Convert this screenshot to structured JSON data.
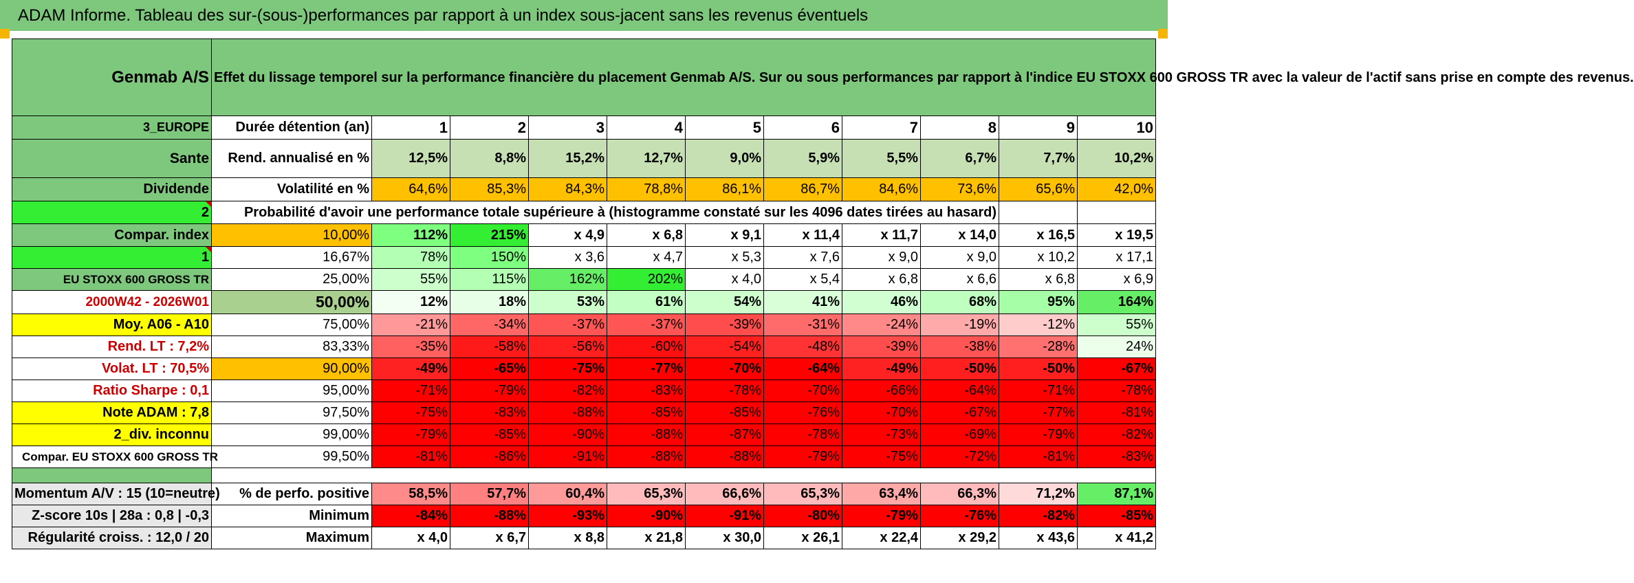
{
  "title": "ADAM Informe. Tableau des sur-(sous-)performances par rapport à un index sous-jacent sans les revenus éventuels",
  "side": {
    "stock": "Genmab A/S",
    "region": "3_EUROPE",
    "sector": "Sante",
    "dividend": "Dividende",
    "selector_a": "2",
    "compar_index": "Compar. index",
    "selector_b": "1",
    "index_name": "EU STOXX 600 GROSS TR",
    "period": "2000W42 - 2026W01",
    "moy": "Moy. A06 - A10",
    "rend_lt": "Rend. LT :    7,2%",
    "volat_lt": "Volat. LT :    70,5%",
    "sharpe": "Ratio Sharpe :     0,1",
    "note": "Note ADAM : 7,8",
    "div": "2_div. inconnu",
    "compar": "Compar. EU STOXX 600 GROSS TR",
    "momentum": "Momentum A/V : 15 (10=neutre)",
    "zscore": "Z-score 10s | 28a : 0,8 | -0,3",
    "regularite": "Régularité croiss. : 12,0 / 20"
  },
  "description": "Effet du lissage temporel sur la performance financière du placement Genmab A/S. Sur ou sous performances par rapport à l'indice EU STOXX 600 GROSS TR avec la valeur de l'actif sans prise en compte des revenus.",
  "headers": {
    "duration": "Durée détention (an)",
    "years": [
      "1",
      "2",
      "3",
      "4",
      "5",
      "6",
      "7",
      "8",
      "9",
      "10"
    ],
    "rend": "Rend. annualisé en %",
    "vol": "Volatilité en %",
    "prob": "Probabilité d'avoir une performance totale supérieure à (histogramme constaté sur les 4096 dates tirées au hasard)",
    "pos": "% de perfo. positive",
    "min": "Minimum",
    "max": "Maximum"
  },
  "rend": [
    "12,5%",
    "8,8%",
    "15,2%",
    "12,7%",
    "9,0%",
    "5,9%",
    "5,5%",
    "6,7%",
    "7,7%",
    "10,2%"
  ],
  "vol": [
    "64,6%",
    "85,3%",
    "84,3%",
    "78,8%",
    "86,1%",
    "86,7%",
    "84,6%",
    "73,6%",
    "65,6%",
    "42,0%"
  ],
  "quantiles": [
    {
      "label": "10,00%",
      "values": [
        "112%",
        "215%",
        "x 4,9",
        "x 6,8",
        "x 9,1",
        "x 11,4",
        "x 11,7",
        "x 14,0",
        "x 16,5",
        "x 19,5"
      ]
    },
    {
      "label": "16,67%",
      "values": [
        "78%",
        "150%",
        "x 3,6",
        "x 4,7",
        "x 5,3",
        "x 7,6",
        "x 9,0",
        "x 9,0",
        "x 10,2",
        "x 17,1"
      ]
    },
    {
      "label": "25,00%",
      "values": [
        "55%",
        "115%",
        "162%",
        "202%",
        "x 4,0",
        "x 5,4",
        "x 6,8",
        "x 6,6",
        "x 6,8",
        "x 6,9"
      ]
    },
    {
      "label": "50,00%",
      "values": [
        "12%",
        "18%",
        "53%",
        "61%",
        "54%",
        "41%",
        "46%",
        "68%",
        "95%",
        "164%"
      ]
    },
    {
      "label": "75,00%",
      "values": [
        "-21%",
        "-34%",
        "-37%",
        "-37%",
        "-39%",
        "-31%",
        "-24%",
        "-19%",
        "-12%",
        "55%"
      ]
    },
    {
      "label": "83,33%",
      "values": [
        "-35%",
        "-58%",
        "-56%",
        "-60%",
        "-54%",
        "-48%",
        "-39%",
        "-38%",
        "-28%",
        "24%"
      ]
    },
    {
      "label": "90,00%",
      "values": [
        "-49%",
        "-65%",
        "-75%",
        "-77%",
        "-70%",
        "-64%",
        "-49%",
        "-50%",
        "-50%",
        "-67%"
      ]
    },
    {
      "label": "95,00%",
      "values": [
        "-71%",
        "-79%",
        "-82%",
        "-83%",
        "-78%",
        "-70%",
        "-66%",
        "-64%",
        "-71%",
        "-78%"
      ]
    },
    {
      "label": "97,50%",
      "values": [
        "-75%",
        "-83%",
        "-88%",
        "-85%",
        "-85%",
        "-76%",
        "-70%",
        "-67%",
        "-77%",
        "-81%"
      ]
    },
    {
      "label": "99,00%",
      "values": [
        "-79%",
        "-85%",
        "-90%",
        "-88%",
        "-87%",
        "-78%",
        "-73%",
        "-69%",
        "-79%",
        "-82%"
      ]
    },
    {
      "label": "99,50%",
      "values": [
        "-81%",
        "-86%",
        "-91%",
        "-88%",
        "-88%",
        "-79%",
        "-75%",
        "-72%",
        "-81%",
        "-83%"
      ]
    }
  ],
  "pos": [
    "58,5%",
    "57,7%",
    "60,4%",
    "65,3%",
    "66,6%",
    "65,3%",
    "63,4%",
    "66,3%",
    "71,2%",
    "87,1%"
  ],
  "min": [
    "-84%",
    "-88%",
    "-93%",
    "-90%",
    "-91%",
    "-80%",
    "-79%",
    "-76%",
    "-82%",
    "-85%"
  ],
  "max": [
    "x 4,0",
    "x 6,7",
    "x 8,8",
    "x 21,8",
    "x 30,0",
    "x 26,1",
    "x 22,4",
    "x 29,2",
    "x 43,6",
    "x 41,2"
  ],
  "colors": {
    "title_bg": "#7ec87e",
    "rend_bg": "#c6e0b4",
    "vol_bg": "#ffc000",
    "q_rows": [
      [
        "#7fff7f",
        "#33ee33",
        "#ffffff",
        "#ffffff",
        "#ffffff",
        "#ffffff",
        "#ffffff",
        "#ffffff",
        "#ffffff",
        "#ffffff"
      ],
      [
        "#b3ffb3",
        "#7fff7f",
        "#ffffff",
        "#ffffff",
        "#ffffff",
        "#ffffff",
        "#ffffff",
        "#ffffff",
        "#ffffff",
        "#ffffff"
      ],
      [
        "#ccffcc",
        "#b3ffb3",
        "#66ee66",
        "#33ee33",
        "#ffffff",
        "#ffffff",
        "#ffffff",
        "#ffffff",
        "#ffffff",
        "#ffffff"
      ],
      [
        "#f2fff2",
        "#e6ffe6",
        "#ccffcc",
        "#c2ffc2",
        "#ccffcc",
        "#d9ffd9",
        "#d2ffd2",
        "#bfffbf",
        "#a6ffa6",
        "#66ee66"
      ],
      [
        "#ff9999",
        "#ff6666",
        "#ff5555",
        "#ff5555",
        "#ff4d4d",
        "#ff6b6b",
        "#ff8888",
        "#ffaaaa",
        "#ffcccc",
        "#ccffcc"
      ],
      [
        "#ff6161",
        "#ff1a1a",
        "#ff1f1f",
        "#ff1010",
        "#ff2020",
        "#ff3333",
        "#ff4d4d",
        "#ff5555",
        "#ff7070",
        "#ebffeb"
      ],
      [
        "#ff2222",
        "#ff0000",
        "#ff0000",
        "#ff0000",
        "#ff0000",
        "#ff0000",
        "#ff2222",
        "#ff1f1f",
        "#ff1f1f",
        "#ff0000"
      ],
      [
        "#ff0000",
        "#ff0000",
        "#ff0000",
        "#ff0000",
        "#ff0000",
        "#ff0000",
        "#ff0000",
        "#ff0000",
        "#ff0000",
        "#ff0000"
      ],
      [
        "#ff0000",
        "#ff0000",
        "#ff0000",
        "#ff0000",
        "#ff0000",
        "#ff0000",
        "#ff0000",
        "#ff0000",
        "#ff0000",
        "#ff0000"
      ],
      [
        "#ff0000",
        "#ff0000",
        "#ff0000",
        "#ff0000",
        "#ff0000",
        "#ff0000",
        "#ff0000",
        "#ff0000",
        "#ff0000",
        "#ff0000"
      ],
      [
        "#ff0000",
        "#ff0000",
        "#ff0000",
        "#ff0000",
        "#ff0000",
        "#ff0000",
        "#ff0000",
        "#ff0000",
        "#ff0000",
        "#ff0000"
      ]
    ],
    "pos_row": [
      "#ff8a8a",
      "#ff8080",
      "#ff9a9a",
      "#ffbbbb",
      "#ffbbbb",
      "#ffbbbb",
      "#ffa8a8",
      "#ffbbbb",
      "#ffdada",
      "#66ee66"
    ]
  }
}
